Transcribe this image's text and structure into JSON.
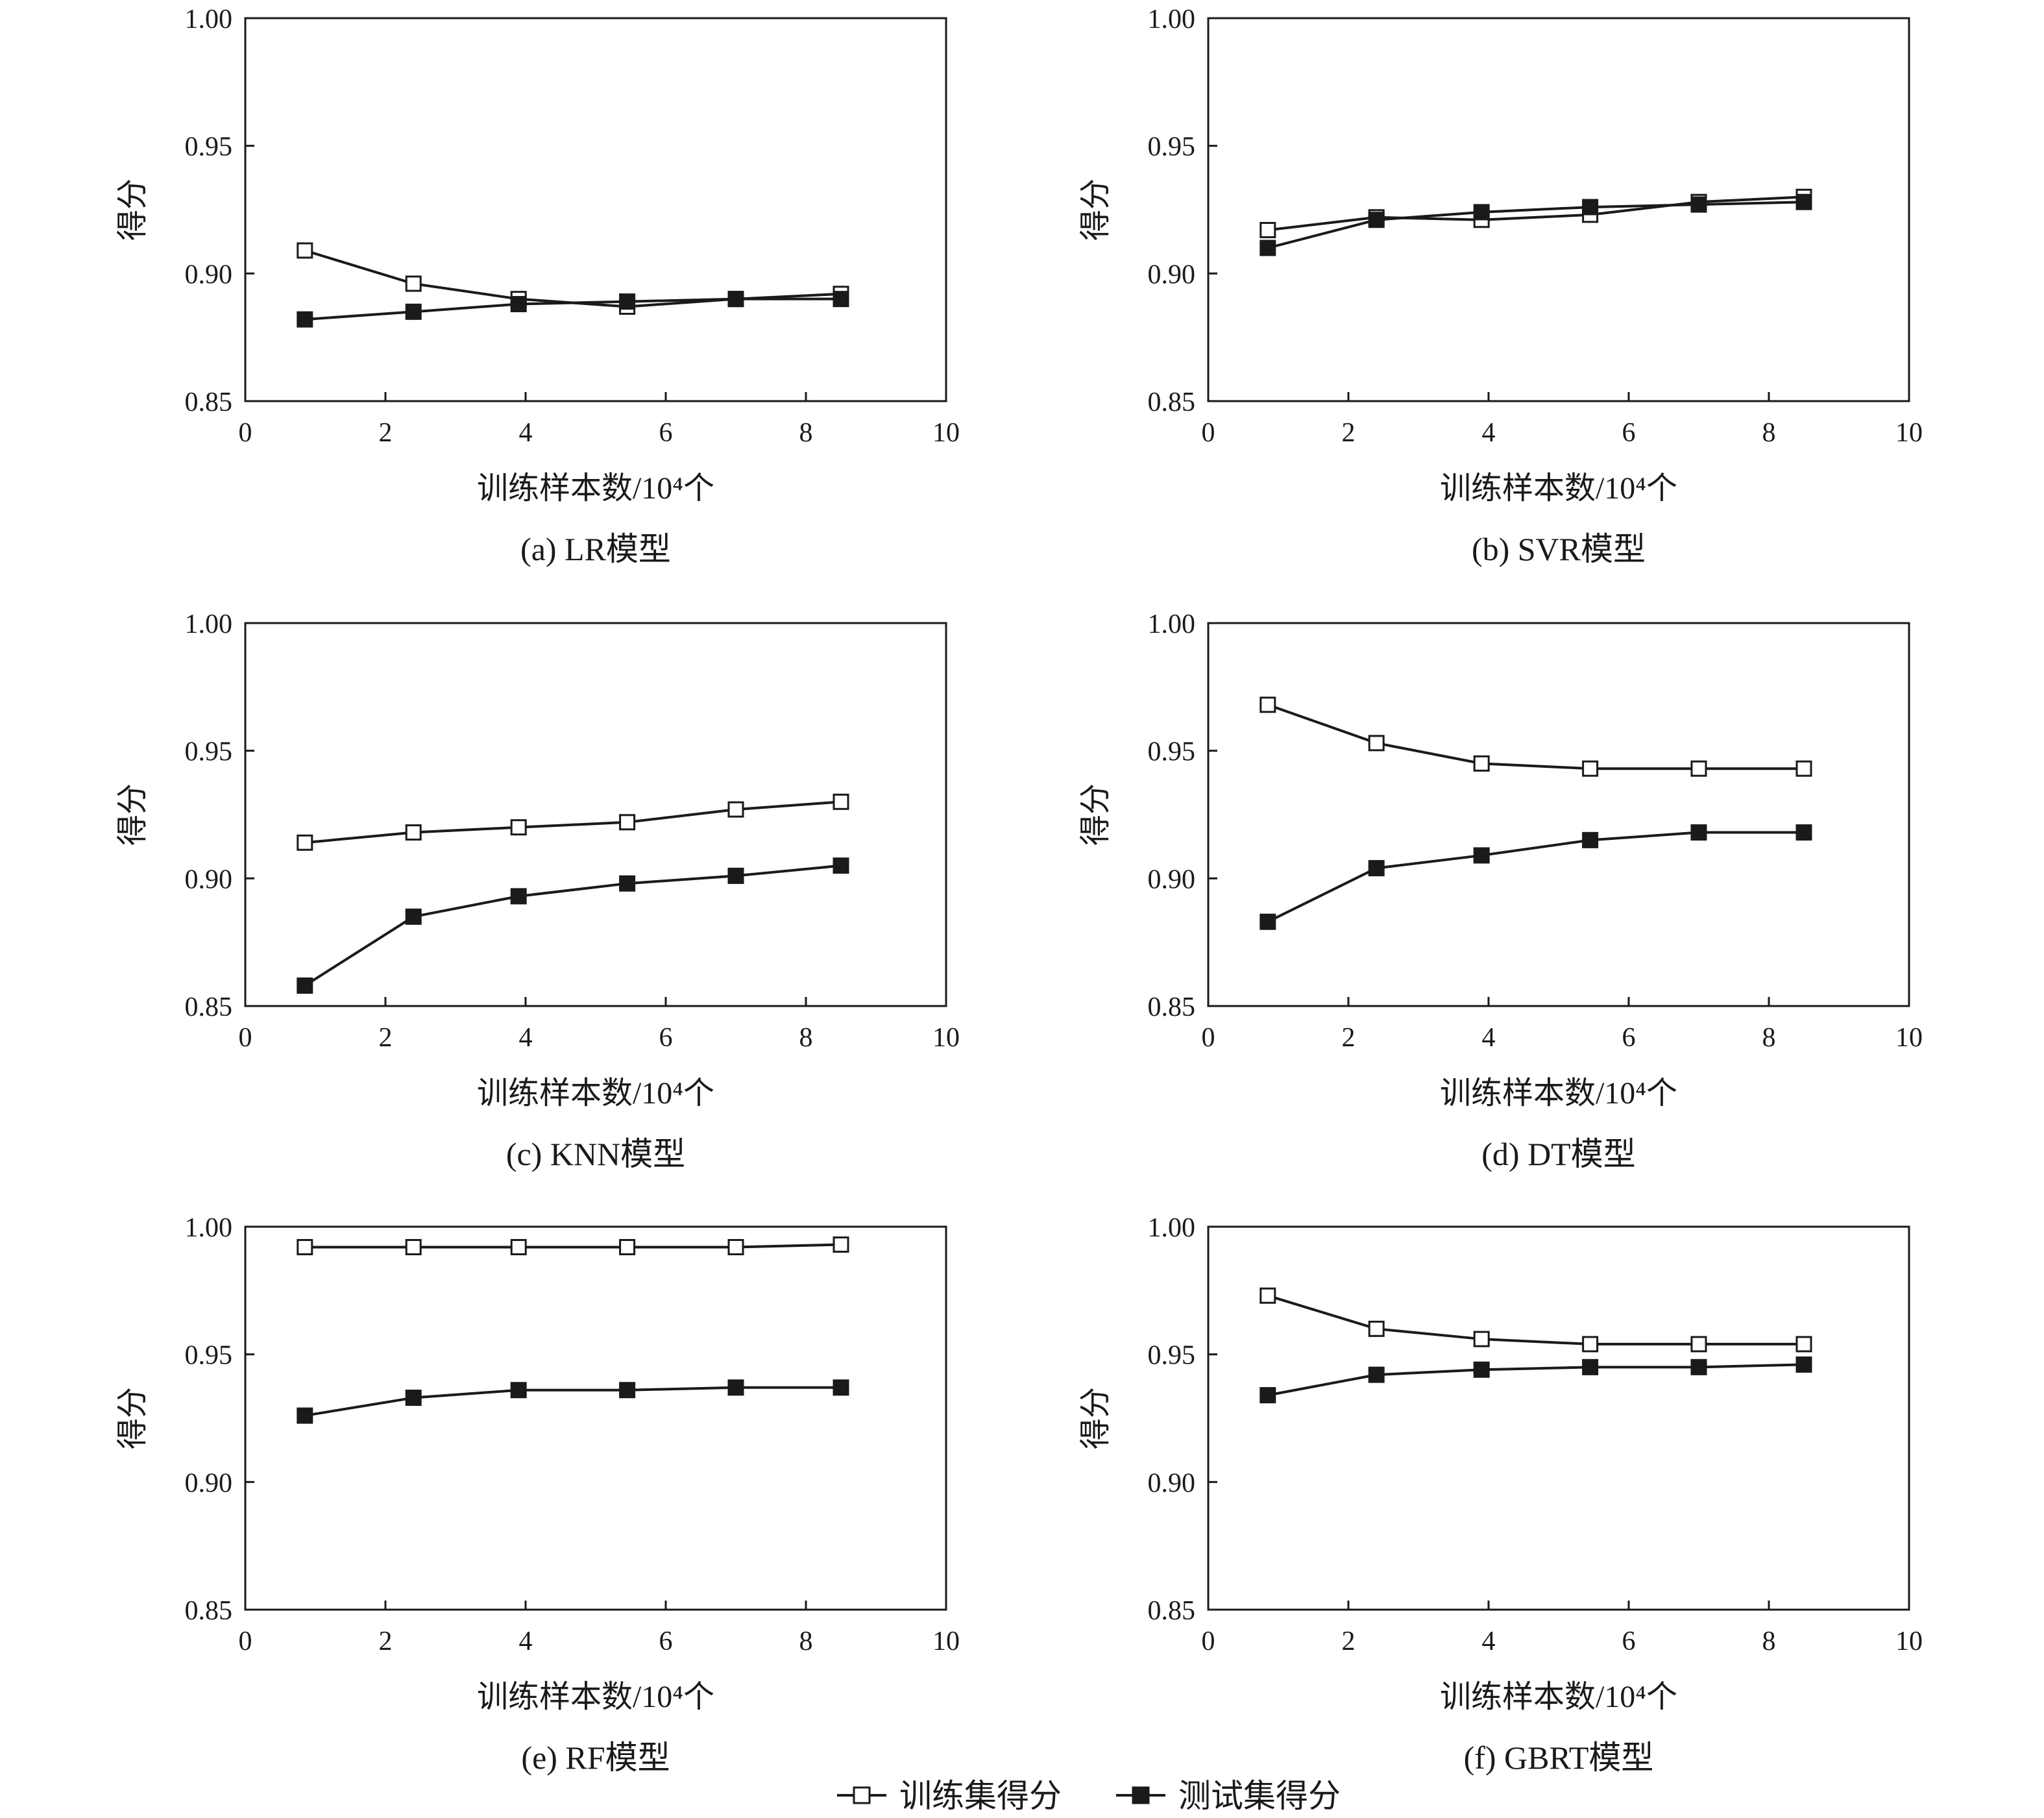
{
  "legend": {
    "position": "bottom-center",
    "items": [
      {
        "label": "训练集得分",
        "marker": "open-square"
      },
      {
        "label": "测试集得分",
        "marker": "filled-square"
      }
    ]
  },
  "colors": {
    "ink": "#1a1a1a",
    "background": "#ffffff"
  },
  "chart_data": [
    {
      "type": "line",
      "caption": "(a) LR模型",
      "xlabel": "训练样本数/10⁴个",
      "ylabel": "得分",
      "xlim": [
        0,
        10
      ],
      "ylim": [
        0.85,
        1.0
      ],
      "xticks": [
        "0",
        "2",
        "4",
        "6",
        "8",
        "10"
      ],
      "yticks": [
        "0.85",
        "0.90",
        "0.95",
        "1.00"
      ],
      "x": [
        0.85,
        2.4,
        3.9,
        5.45,
        7.0,
        8.5
      ],
      "series": [
        {
          "name": "训练集得分",
          "values": [
            0.909,
            0.896,
            0.89,
            0.887,
            0.89,
            0.892
          ]
        },
        {
          "name": "测试集得分",
          "values": [
            0.882,
            0.885,
            0.888,
            0.889,
            0.89,
            0.89
          ]
        }
      ]
    },
    {
      "type": "line",
      "caption": "(b) SVR模型",
      "xlabel": "训练样本数/10⁴个",
      "ylabel": "得分",
      "xlim": [
        0,
        10
      ],
      "ylim": [
        0.85,
        1.0
      ],
      "xticks": [
        "0",
        "2",
        "4",
        "6",
        "8",
        "10"
      ],
      "yticks": [
        "0.85",
        "0.90",
        "0.95",
        "1.00"
      ],
      "x": [
        0.85,
        2.4,
        3.9,
        5.45,
        7.0,
        8.5
      ],
      "series": [
        {
          "name": "训练集得分",
          "values": [
            0.917,
            0.922,
            0.921,
            0.923,
            0.928,
            0.93
          ]
        },
        {
          "name": "测试集得分",
          "values": [
            0.91,
            0.921,
            0.924,
            0.926,
            0.927,
            0.928
          ]
        }
      ]
    },
    {
      "type": "line",
      "caption": "(c) KNN模型",
      "xlabel": "训练样本数/10⁴个",
      "ylabel": "得分",
      "xlim": [
        0,
        10
      ],
      "ylim": [
        0.85,
        1.0
      ],
      "xticks": [
        "0",
        "2",
        "4",
        "6",
        "8",
        "10"
      ],
      "yticks": [
        "0.85",
        "0.90",
        "0.95",
        "1.00"
      ],
      "x": [
        0.85,
        2.4,
        3.9,
        5.45,
        7.0,
        8.5
      ],
      "series": [
        {
          "name": "训练集得分",
          "values": [
            0.914,
            0.918,
            0.92,
            0.922,
            0.927,
            0.93
          ]
        },
        {
          "name": "测试集得分",
          "values": [
            0.858,
            0.885,
            0.893,
            0.898,
            0.901,
            0.905
          ]
        }
      ]
    },
    {
      "type": "line",
      "caption": "(d) DT模型",
      "xlabel": "训练样本数/10⁴个",
      "ylabel": "得分",
      "xlim": [
        0,
        10
      ],
      "ylim": [
        0.85,
        1.0
      ],
      "xticks": [
        "0",
        "2",
        "4",
        "6",
        "8",
        "10"
      ],
      "yticks": [
        "0.85",
        "0.90",
        "0.95",
        "1.00"
      ],
      "x": [
        0.85,
        2.4,
        3.9,
        5.45,
        7.0,
        8.5
      ],
      "series": [
        {
          "name": "训练集得分",
          "values": [
            0.968,
            0.953,
            0.945,
            0.943,
            0.943,
            0.943
          ]
        },
        {
          "name": "测试集得分",
          "values": [
            0.883,
            0.904,
            0.909,
            0.915,
            0.918,
            0.918
          ]
        }
      ]
    },
    {
      "type": "line",
      "caption": "(e) RF模型",
      "xlabel": "训练样本数/10⁴个",
      "ylabel": "得分",
      "xlim": [
        0,
        10
      ],
      "ylim": [
        0.85,
        1.0
      ],
      "xticks": [
        "0",
        "2",
        "4",
        "6",
        "8",
        "10"
      ],
      "yticks": [
        "0.85",
        "0.90",
        "0.95",
        "1.00"
      ],
      "x": [
        0.85,
        2.4,
        3.9,
        5.45,
        7.0,
        8.5
      ],
      "series": [
        {
          "name": "训练集得分",
          "values": [
            0.992,
            0.992,
            0.992,
            0.992,
            0.992,
            0.993
          ]
        },
        {
          "name": "测试集得分",
          "values": [
            0.926,
            0.933,
            0.936,
            0.936,
            0.937,
            0.937
          ]
        }
      ]
    },
    {
      "type": "line",
      "caption": "(f) GBRT模型",
      "xlabel": "训练样本数/10⁴个",
      "ylabel": "得分",
      "xlim": [
        0,
        10
      ],
      "ylim": [
        0.85,
        1.0
      ],
      "xticks": [
        "0",
        "2",
        "4",
        "6",
        "8",
        "10"
      ],
      "yticks": [
        "0.85",
        "0.90",
        "0.95",
        "1.00"
      ],
      "x": [
        0.85,
        2.4,
        3.9,
        5.45,
        7.0,
        8.5
      ],
      "series": [
        {
          "name": "训练集得分",
          "values": [
            0.973,
            0.96,
            0.956,
            0.954,
            0.954,
            0.954
          ]
        },
        {
          "name": "测试集得分",
          "values": [
            0.934,
            0.942,
            0.944,
            0.945,
            0.945,
            0.946
          ]
        }
      ]
    }
  ]
}
